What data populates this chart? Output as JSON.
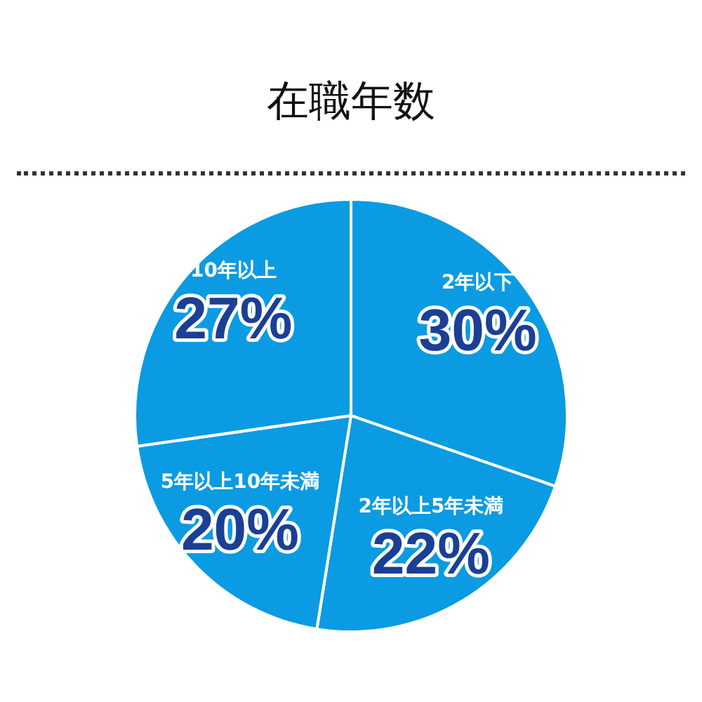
{
  "chart_data": {
    "type": "pie",
    "title": "在職年数",
    "categories": [
      "2年以下",
      "2年以上5年未満",
      "5年以上10年未満",
      "10年以上"
    ],
    "values": [
      30,
      22,
      20,
      27
    ],
    "value_labels": [
      "30%",
      "22%",
      "20%",
      "27%"
    ],
    "colors": [
      "#0a9be2",
      "#0a9be2",
      "#0a9be2",
      "#0a9be2"
    ]
  }
}
